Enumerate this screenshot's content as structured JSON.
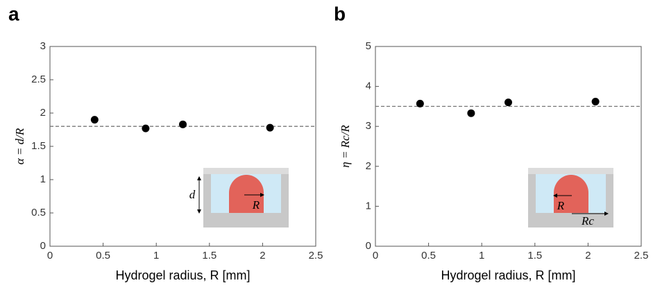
{
  "chart_data": [
    {
      "type": "scatter",
      "panel_label": "a",
      "x_label": "Hydrogel radius, R [mm]",
      "y_label": "α = d/R",
      "x": [
        0.42,
        0.9,
        1.25,
        2.07
      ],
      "values": [
        1.9,
        1.77,
        1.83,
        1.78
      ],
      "color": "#000000",
      "reference_line": 1.8,
      "xlim": [
        0,
        2.5
      ],
      "ylim": [
        0,
        3
      ],
      "xticks": [
        0,
        0.5,
        1,
        1.5,
        2,
        2.5
      ],
      "yticks": [
        0,
        0.5,
        1,
        1.5,
        2,
        2.5,
        3
      ],
      "inset_labels": [
        "d",
        "R"
      ]
    },
    {
      "type": "scatter",
      "panel_label": "b",
      "x_label": "Hydrogel radius, R [mm]",
      "y_label": "η = Rc/R",
      "x": [
        0.42,
        0.9,
        1.25,
        2.07
      ],
      "values": [
        3.57,
        3.33,
        3.6,
        3.62
      ],
      "color": "#000000",
      "reference_line": 3.5,
      "xlim": [
        0,
        2.5
      ],
      "ylim": [
        0,
        5
      ],
      "xticks": [
        0,
        0.5,
        1,
        1.5,
        2,
        2.5
      ],
      "yticks": [
        0,
        1,
        2,
        3,
        4,
        5
      ],
      "inset_labels": [
        "R",
        "Rc"
      ]
    }
  ]
}
